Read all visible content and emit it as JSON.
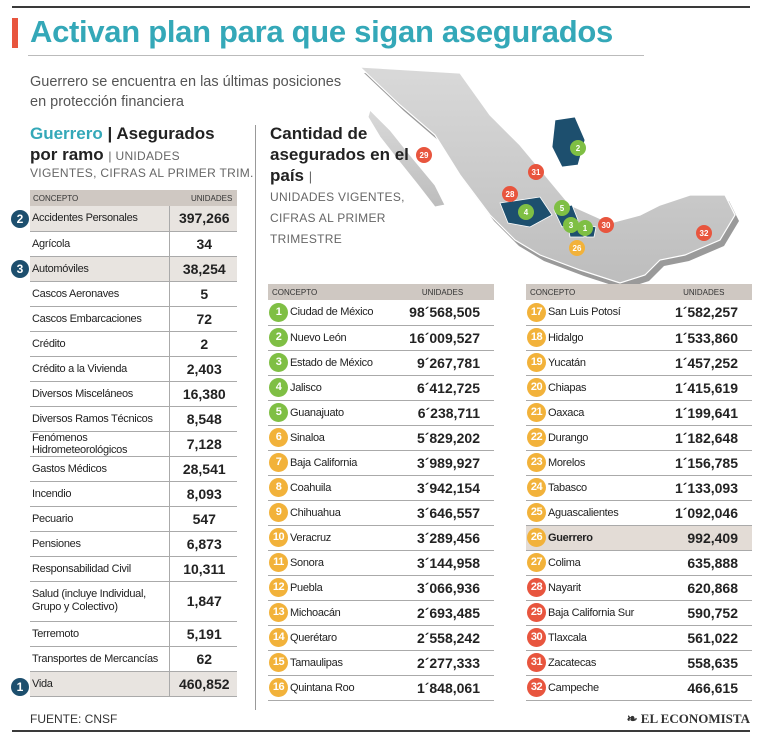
{
  "title": "Activan plan para que sigan asegurados",
  "subtitle": "Guerrero se encuentra en las últimas posiciones en protección financiera",
  "left": {
    "state": "Guerrero",
    "sep": "|",
    "heading": "Asegurados por ramo",
    "unit_note_1": "| UNIDADES",
    "unit_note_2": "VIGENTES, CIFRAS AL PRIMER TRIM.",
    "col_concept": "CONCEPTO",
    "col_units": "UNIDADES",
    "rows": [
      {
        "concept": "Accidentes Personales",
        "units": "397,266"
      },
      {
        "concept": "Agrícola",
        "units": "34"
      },
      {
        "concept": "Automóviles",
        "units": "38,254"
      },
      {
        "concept": "Cascos Aeronaves",
        "units": "5"
      },
      {
        "concept": "Cascos Embarcaciones",
        "units": "72"
      },
      {
        "concept": "Crédito",
        "units": "2"
      },
      {
        "concept": "Crédito a la Vivienda",
        "units": "2,403"
      },
      {
        "concept": "Diversos Misceláneos",
        "units": "16,380"
      },
      {
        "concept": "Diversos Ramos Técnicos",
        "units": "8,548"
      },
      {
        "concept": "Fenómenos Hidrometeorológicos",
        "units": "7,128"
      },
      {
        "concept": "Gastos Médicos",
        "units": "28,541"
      },
      {
        "concept": "Incendio",
        "units": "8,093"
      },
      {
        "concept": "Pecuario",
        "units": "547"
      },
      {
        "concept": "Pensiones",
        "units": "6,873"
      },
      {
        "concept": "Responsabilidad Civil",
        "units": "10,311"
      },
      {
        "concept": "Salud (incluye Individual, Grupo y Colectivo)",
        "units": "1,847"
      },
      {
        "concept": "Terremoto",
        "units": "5,191"
      },
      {
        "concept": "Transportes de Mercancías",
        "units": "62"
      },
      {
        "concept": "Vida",
        "units": "460,852"
      }
    ],
    "badges": [
      "2",
      "3",
      "1"
    ]
  },
  "middle": {
    "heading": "Cantidad de asegurados en el país",
    "sep": "|",
    "note": "UNIDADES VIGENTES, CIFRAS AL PRIMER TRIMESTRE"
  },
  "states_a": {
    "col_concept": "CONCEPTO",
    "col_units": "UNIDADES",
    "rows": [
      {
        "n": "1",
        "name": "Ciudad de México",
        "units": "98´568,505"
      },
      {
        "n": "2",
        "name": "Nuevo León",
        "units": "16´009,527"
      },
      {
        "n": "3",
        "name": "Estado de México",
        "units": "9´267,781"
      },
      {
        "n": "4",
        "name": "Jalisco",
        "units": "6´412,725"
      },
      {
        "n": "5",
        "name": "Guanajuato",
        "units": "6´238,711"
      },
      {
        "n": "6",
        "name": "Sinaloa",
        "units": "5´829,202"
      },
      {
        "n": "7",
        "name": "Baja California",
        "units": "3´989,927"
      },
      {
        "n": "8",
        "name": "Coahuila",
        "units": "3´942,154"
      },
      {
        "n": "9",
        "name": "Chihuahua",
        "units": "3´646,557"
      },
      {
        "n": "10",
        "name": "Veracruz",
        "units": "3´289,456"
      },
      {
        "n": "11",
        "name": "Sonora",
        "units": "3´144,958"
      },
      {
        "n": "12",
        "name": "Puebla",
        "units": "3´066,936"
      },
      {
        "n": "13",
        "name": "Michoacán",
        "units": "2´693,485"
      },
      {
        "n": "14",
        "name": "Querétaro",
        "units": "2´558,242"
      },
      {
        "n": "15",
        "name": "Tamaulipas",
        "units": "2´277,333"
      },
      {
        "n": "16",
        "name": "Quintana Roo",
        "units": "1´848,061"
      }
    ]
  },
  "states_b": {
    "col_concept": "CONCEPTO",
    "col_units": "UNIDADES",
    "rows": [
      {
        "n": "17",
        "name": "San Luis Potosí",
        "units": "1´582,257"
      },
      {
        "n": "18",
        "name": "Hidalgo",
        "units": "1´533,860"
      },
      {
        "n": "19",
        "name": "Yucatán",
        "units": "1´457,252"
      },
      {
        "n": "20",
        "name": "Chiapas",
        "units": "1´415,619"
      },
      {
        "n": "21",
        "name": "Oaxaca",
        "units": "1´199,641"
      },
      {
        "n": "22",
        "name": "Durango",
        "units": "1´182,648"
      },
      {
        "n": "23",
        "name": "Morelos",
        "units": "1´156,785"
      },
      {
        "n": "24",
        "name": "Tabasco",
        "units": "1´133,093"
      },
      {
        "n": "25",
        "name": "Aguascalientes",
        "units": "1´092,046"
      },
      {
        "n": "26",
        "name": "Guerrero",
        "units": "992,409"
      },
      {
        "n": "27",
        "name": "Colima",
        "units": "635,888"
      },
      {
        "n": "28",
        "name": "Nayarit",
        "units": "620,868"
      },
      {
        "n": "29",
        "name": "Baja California Sur",
        "units": "590,752"
      },
      {
        "n": "30",
        "name": "Tlaxcala",
        "units": "561,022"
      },
      {
        "n": "31",
        "name": "Zacatecas",
        "units": "558,635"
      },
      {
        "n": "32",
        "name": "Campeche",
        "units": "466,615"
      }
    ]
  },
  "map_markers": [
    "29",
    "31",
    "28",
    "2",
    "4",
    "5",
    "3",
    "1",
    "30",
    "26",
    "32"
  ],
  "colors": {
    "accent": "#34a8b8",
    "top5": "#7fbf44",
    "mid": "#f2b23a",
    "bottom5": "#e8553e",
    "badge": "#1d4f6e"
  },
  "source": "FUENTE: CNSF",
  "brand": "EL ECONOMISTA"
}
